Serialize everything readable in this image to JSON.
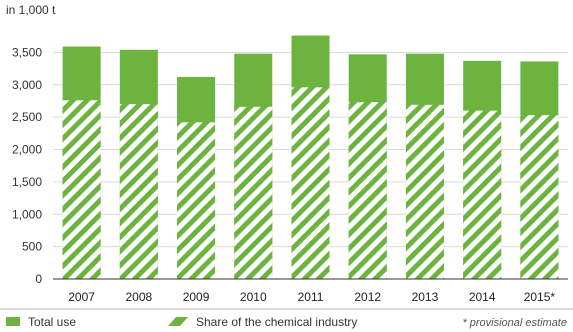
{
  "chart_data": {
    "type": "bar",
    "unit_label": "in 1,000 t",
    "categories": [
      "2007",
      "2008",
      "2009",
      "2010",
      "2011",
      "2012",
      "2013",
      "2014",
      "2015*"
    ],
    "series": [
      {
        "name": "Total use",
        "values": [
          3590,
          3540,
          3120,
          3480,
          3760,
          3470,
          3480,
          3370,
          3360
        ],
        "color": "#6db33f"
      },
      {
        "name": "Share of the chemical industry",
        "values": [
          2760,
          2700,
          2420,
          2660,
          2960,
          2730,
          2690,
          2600,
          2530
        ],
        "color": "#6db33f",
        "pattern": "diagonal-hatch"
      }
    ],
    "y_ticks": [
      "0",
      "500",
      "1,000",
      "1,500",
      "2,000",
      "2,500",
      "3,000",
      "3,500"
    ],
    "ylim": [
      0,
      4000
    ],
    "grid": true,
    "legend_position": "bottom",
    "footnote": "* provisional estimate"
  }
}
